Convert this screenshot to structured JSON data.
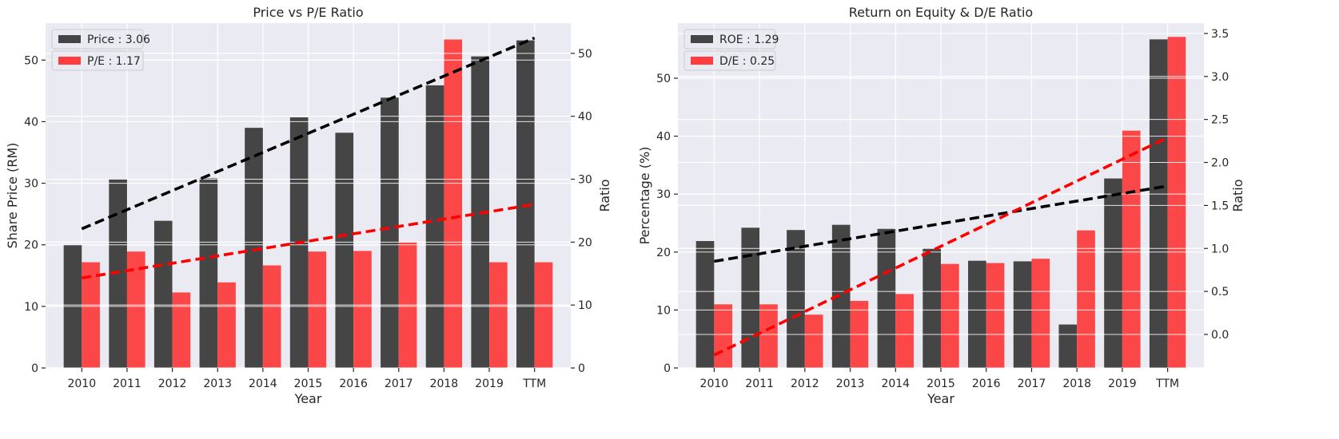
{
  "chart_data": [
    {
      "type": "bar",
      "title": "Price vs P/E Ratio",
      "xlabel": "Year",
      "ylabel": "Share Price (RM)",
      "y2label": "Ratio",
      "categories": [
        "2010",
        "2011",
        "2012",
        "2013",
        "2014",
        "2015",
        "2016",
        "2017",
        "2018",
        "2019",
        "TTM"
      ],
      "ylim": [
        0,
        56
      ],
      "y2lim": [
        0,
        54.8
      ],
      "yticks": [
        0,
        10,
        20,
        30,
        40,
        50
      ],
      "y2ticks": [
        0,
        10,
        20,
        30,
        40,
        50
      ],
      "grid": true,
      "legend_position": "top-left",
      "series": [
        {
          "name": "Price : 3.06",
          "axis": "left",
          "color": "#333333",
          "values": [
            20.0,
            30.7,
            23.9,
            30.8,
            39.0,
            40.7,
            38.2,
            43.9,
            45.9,
            50.6,
            53.2
          ]
        },
        {
          "name": "P/E : 1.17",
          "axis": "right",
          "color": "#ff2a2a",
          "values": [
            16.8,
            18.5,
            12.0,
            13.6,
            16.3,
            18.5,
            18.6,
            20.0,
            52.2,
            16.8,
            16.8
          ]
        }
      ],
      "trendlines": [
        {
          "axis": "left",
          "color": "#000000",
          "from": {
            "category": "2010",
            "value": 22.6
          },
          "to": {
            "category": "TTM",
            "value": 53.6
          }
        },
        {
          "axis": "right",
          "color": "#ff0000",
          "from": {
            "category": "2010",
            "value": 14.3
          },
          "to": {
            "category": "TTM",
            "value": 26.0
          }
        }
      ]
    },
    {
      "type": "bar",
      "title": "Return on Equity & D/E Ratio",
      "xlabel": "Year",
      "ylabel": "Percentage (%)",
      "y2label": "Ratio",
      "categories": [
        "2010",
        "2011",
        "2012",
        "2013",
        "2014",
        "2015",
        "2016",
        "2017",
        "2018",
        "2019",
        "TTM"
      ],
      "ylim": [
        0,
        59.5
      ],
      "y2lim": [
        -0.39,
        3.62
      ],
      "yticks": [
        0,
        10,
        20,
        30,
        40,
        50
      ],
      "y2ticks": [
        0.0,
        0.5,
        1.0,
        1.5,
        2.0,
        2.5,
        3.0,
        3.5
      ],
      "y2tick_labels": [
        "0.0",
        "0.5",
        "1.0",
        "1.5",
        "2.0",
        "2.5",
        "3.0",
        "3.5"
      ],
      "grid": true,
      "legend_position": "top-left",
      "series": [
        {
          "name": "ROE : 1.29",
          "axis": "left",
          "color": "#333333",
          "values": [
            21.9,
            24.2,
            23.8,
            24.7,
            24.0,
            20.6,
            18.5,
            18.4,
            7.5,
            32.7,
            56.7
          ]
        },
        {
          "name": "D/E : 0.25",
          "axis": "right",
          "color": "#ff2a2a",
          "values": [
            0.35,
            0.35,
            0.23,
            0.39,
            0.47,
            0.82,
            0.83,
            0.88,
            1.21,
            2.37,
            3.46
          ]
        }
      ],
      "trendlines": [
        {
          "axis": "left",
          "color": "#000000",
          "from": {
            "category": "2010",
            "value": 18.4
          },
          "to": {
            "category": "TTM",
            "value": 31.4
          }
        },
        {
          "axis": "right",
          "color": "#ff0000",
          "from": {
            "category": "2010",
            "value": -0.24
          },
          "to": {
            "category": "TTM",
            "value": 2.29
          }
        }
      ]
    }
  ]
}
